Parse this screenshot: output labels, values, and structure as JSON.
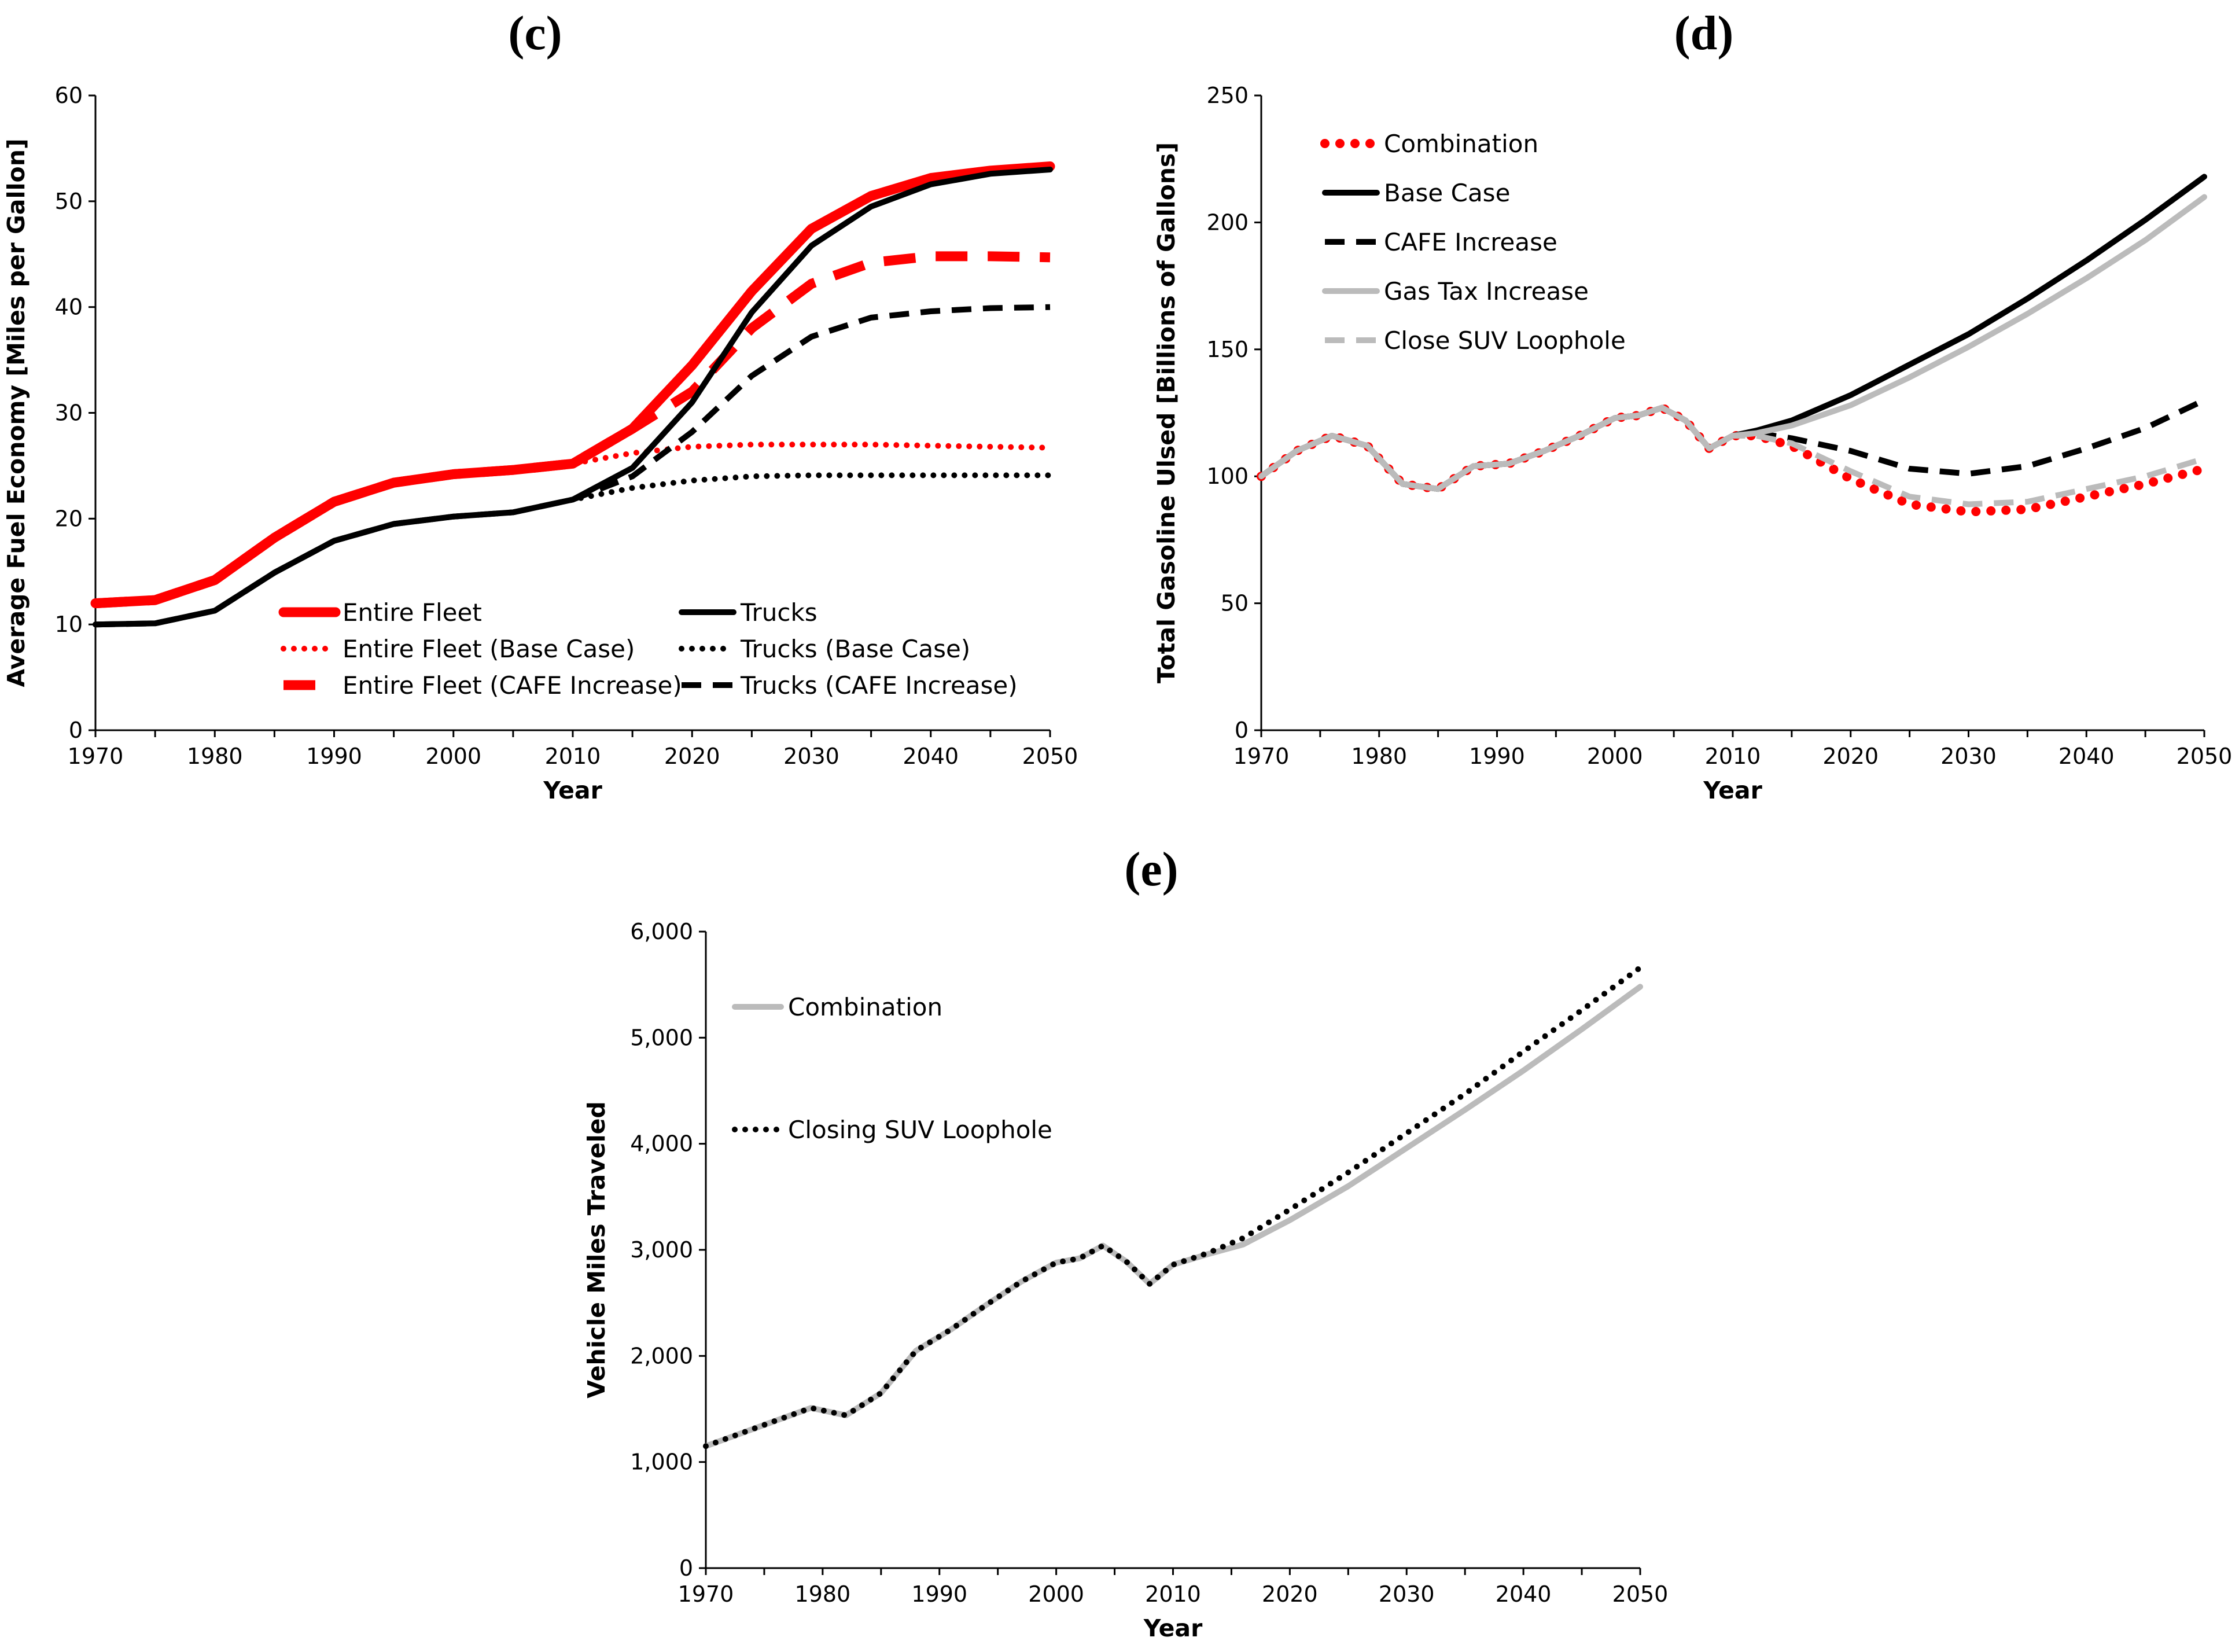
{
  "chart_data": [
    {
      "type": "line",
      "panel_label": "(c)",
      "xlabel": "Year",
      "ylabel": "Average Fuel Economy [Miles per Gallon]",
      "xlim": [
        1970,
        2050
      ],
      "ylim": [
        0,
        60
      ],
      "x_ticks": [
        1970,
        1980,
        1990,
        2000,
        2010,
        2020,
        2030,
        2040,
        2050
      ],
      "y_ticks": [
        0,
        10,
        20,
        30,
        40,
        50,
        60
      ],
      "legend": "bottom-center, two columns",
      "grid": false,
      "x": [
        1970,
        1975,
        1980,
        1985,
        1990,
        1995,
        2000,
        2005,
        2010,
        2015,
        2020,
        2025,
        2030,
        2035,
        2040,
        2045,
        2050
      ],
      "series": [
        {
          "name": "Entire Fleet",
          "color": "#ff0000",
          "style": "solid-thick",
          "values": [
            12,
            12.3,
            14.2,
            18.2,
            21.6,
            23.4,
            24.2,
            24.6,
            25.2,
            28.5,
            34.5,
            41.5,
            47.4,
            50.5,
            52.2,
            52.9,
            53.3
          ]
        },
        {
          "name": "Entire Fleet (Base Case)",
          "color": "#ff0000",
          "style": "dotted",
          "values": [
            12,
            12.3,
            14.2,
            18.2,
            21.6,
            23.4,
            24.2,
            24.6,
            25.2,
            26.2,
            26.8,
            27,
            27,
            27,
            26.9,
            26.8,
            26.7
          ]
        },
        {
          "name": "Entire Fleet (CAFE Increase)",
          "color": "#ff0000",
          "style": "dashed-thick",
          "values": [
            12,
            12.3,
            14.2,
            18.2,
            21.6,
            23.4,
            24.2,
            24.6,
            25.2,
            28.5,
            32,
            38,
            42.2,
            44.2,
            44.8,
            44.8,
            44.7
          ]
        },
        {
          "name": "Trucks",
          "color": "#000000",
          "style": "solid",
          "values": [
            10,
            10.1,
            11.3,
            14.9,
            17.9,
            19.5,
            20.2,
            20.6,
            21.8,
            24.8,
            31,
            39.5,
            45.8,
            49.5,
            51.6,
            52.6,
            53
          ]
        },
        {
          "name": "Trucks (Base Case)",
          "color": "#000000",
          "style": "dotted",
          "values": [
            10,
            10.1,
            11.3,
            14.9,
            17.9,
            19.5,
            20.2,
            20.6,
            21.8,
            22.9,
            23.6,
            24,
            24.1,
            24.1,
            24.1,
            24.1,
            24.1
          ]
        },
        {
          "name": "Trucks (CAFE Increase)",
          "color": "#000000",
          "style": "dashed",
          "values": [
            10,
            10.1,
            11.3,
            14.9,
            17.9,
            19.5,
            20.2,
            20.6,
            21.8,
            24,
            28.2,
            33.5,
            37.2,
            39,
            39.6,
            39.9,
            40
          ]
        }
      ]
    },
    {
      "type": "line",
      "panel_label": "(d)",
      "xlabel": "Year",
      "ylabel": "Total Gasoline Ulsed [Billions of Gallons]",
      "xlim": [
        1970,
        2050
      ],
      "ylim": [
        0,
        250
      ],
      "x_ticks": [
        1970,
        1980,
        1990,
        2000,
        2010,
        2020,
        2030,
        2040,
        2050
      ],
      "y_ticks": [
        0,
        50,
        100,
        150,
        200,
        250
      ],
      "legend": "top-left",
      "grid": false,
      "x": [
        1970,
        1973,
        1976,
        1979,
        1982,
        1985,
        1988,
        1991,
        1994,
        1997,
        2000,
        2002,
        2004,
        2006,
        2008,
        2010,
        2012,
        2015,
        2020,
        2025,
        2030,
        2035,
        2040,
        2045,
        2050
      ],
      "series": [
        {
          "name": "Combination",
          "color": "#ff0000",
          "style": "dotted-thick",
          "values": [
            100,
            110,
            116,
            112,
            97,
            95,
            104,
            105,
            110,
            116,
            123,
            124,
            127,
            122,
            111,
            116,
            116,
            112,
            99,
            89,
            86,
            87,
            92,
            97,
            103
          ]
        },
        {
          "name": "Base Case",
          "color": "#000000",
          "style": "solid",
          "values": [
            100,
            110,
            116,
            112,
            97,
            95,
            104,
            105,
            110,
            116,
            123,
            124,
            127,
            122,
            111,
            116,
            118,
            122,
            132,
            144,
            156,
            170,
            185,
            201,
            218
          ]
        },
        {
          "name": "CAFE Increase",
          "color": "#000000",
          "style": "dashed",
          "values": [
            100,
            110,
            116,
            112,
            97,
            95,
            104,
            105,
            110,
            116,
            123,
            124,
            127,
            122,
            111,
            116,
            117,
            115,
            110,
            103,
            101,
            104,
            111,
            119,
            130
          ]
        },
        {
          "name": "Gas Tax Increase",
          "color": "#bbbbbb",
          "style": "solid",
          "values": [
            100,
            110,
            116,
            112,
            97,
            95,
            104,
            105,
            110,
            116,
            123,
            124,
            127,
            122,
            111,
            116,
            117,
            120,
            128,
            139,
            151,
            164,
            178,
            193,
            210
          ]
        },
        {
          "name": "Close SUV Loophole",
          "color": "#bbbbbb",
          "style": "dashed",
          "values": [
            100,
            110,
            116,
            112,
            97,
            95,
            104,
            105,
            110,
            116,
            123,
            124,
            127,
            122,
            111,
            116,
            116,
            113,
            102,
            92,
            89,
            90,
            95,
            100,
            107
          ]
        }
      ]
    },
    {
      "type": "line",
      "panel_label": "(e)",
      "xlabel": "Year",
      "ylabel": "Vehicle Miles Traveled",
      "xlim": [
        1970,
        2050
      ],
      "ylim": [
        0,
        6000
      ],
      "x_ticks": [
        1970,
        1980,
        1990,
        2000,
        2010,
        2020,
        2030,
        2040,
        2050
      ],
      "y_ticks": [
        0,
        1000,
        2000,
        3000,
        4000,
        5000,
        6000
      ],
      "y_tick_labels": [
        "0",
        "1,000",
        "2,000",
        "3,000",
        "4,000",
        "5,000",
        "6,000"
      ],
      "legend": "top-left",
      "grid": false,
      "x": [
        1970,
        1975,
        1979,
        1982,
        1985,
        1988,
        1991,
        1994,
        1997,
        2000,
        2002,
        2004,
        2006,
        2008,
        2010,
        2013,
        2016,
        2020,
        2025,
        2030,
        2035,
        2040,
        2045,
        2050
      ],
      "series": [
        {
          "name": "Combination",
          "color": "#bbbbbb",
          "style": "solid",
          "values": [
            1150,
            1350,
            1510,
            1440,
            1650,
            2050,
            2250,
            2480,
            2700,
            2880,
            2920,
            3040,
            2890,
            2680,
            2860,
            2960,
            3050,
            3280,
            3600,
            3960,
            4320,
            4690,
            5080,
            5480
          ]
        },
        {
          "name": "Closing SUV Loophole",
          "color": "#000000",
          "style": "dotted",
          "values": [
            1150,
            1350,
            1510,
            1440,
            1650,
            2050,
            2250,
            2480,
            2700,
            2880,
            2920,
            3040,
            2890,
            2680,
            2860,
            2970,
            3110,
            3380,
            3730,
            4100,
            4470,
            4870,
            5260,
            5660
          ]
        }
      ]
    }
  ]
}
